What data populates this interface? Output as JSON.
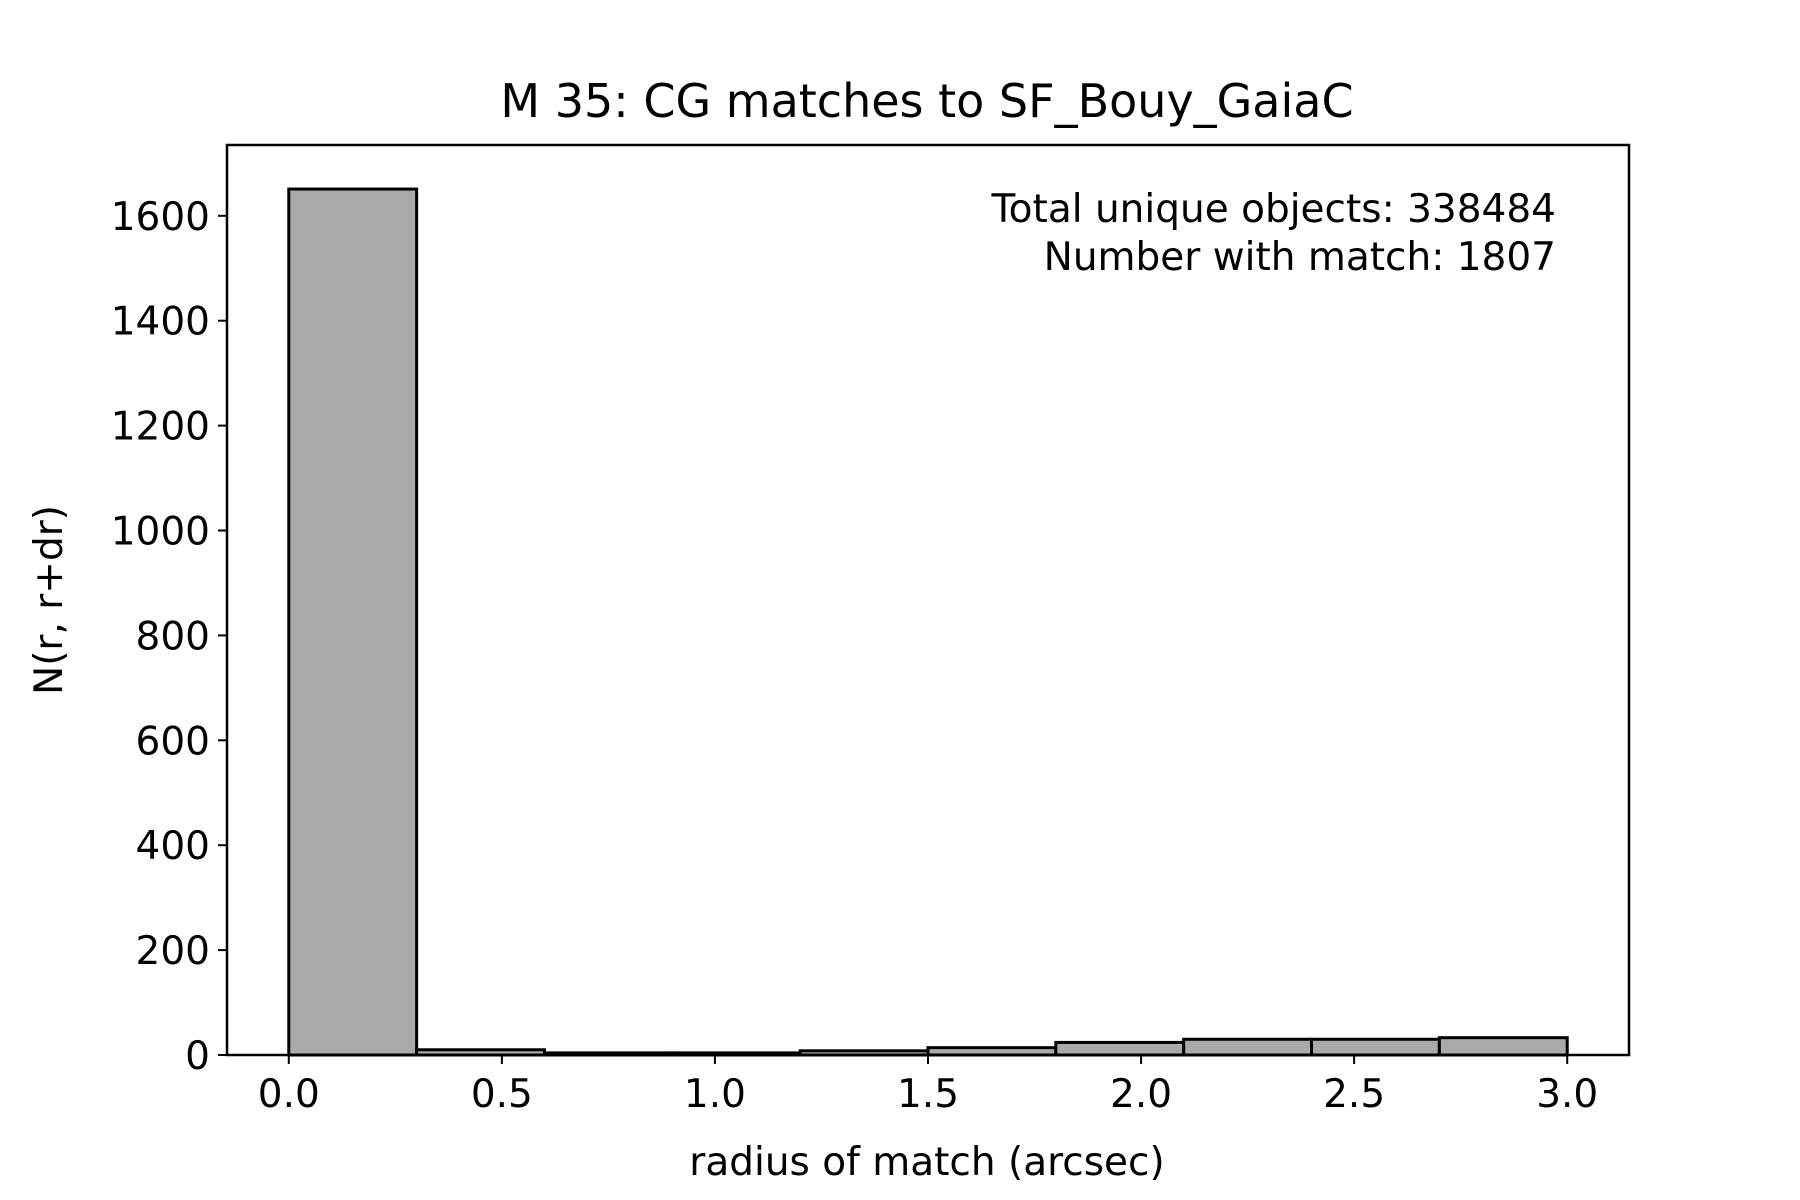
{
  "chart_data": {
    "type": "bar",
    "subtype": "histogram",
    "title": "M 35: CG matches to SF_Bouy_GaiaC",
    "xlabel": "radius of match (arcsec)",
    "ylabel": "N(r, r+dr)",
    "xlim": [
      -0.145,
      3.145
    ],
    "ylim": [
      0,
      1735
    ],
    "xticks": [
      0.0,
      0.5,
      1.0,
      1.5,
      2.0,
      2.5,
      3.0
    ],
    "xtick_labels": [
      "0.0",
      "0.5",
      "1.0",
      "1.5",
      "2.0",
      "2.5",
      "3.0"
    ],
    "yticks": [
      0,
      200,
      400,
      600,
      800,
      1000,
      1200,
      1400,
      1600
    ],
    "ytick_labels": [
      "0",
      "200",
      "400",
      "600",
      "800",
      "1000",
      "1200",
      "1400",
      "1600"
    ],
    "bin_edges": [
      0.0,
      0.3,
      0.6,
      0.9,
      1.2,
      1.5,
      1.8,
      2.1,
      2.4,
      2.7,
      3.0
    ],
    "values": [
      1651,
      10,
      4,
      4,
      8,
      14,
      24,
      30,
      30,
      33
    ],
    "bar_color": "#aaaaaa",
    "edge_color": "#000000",
    "grid": false,
    "annotations": [
      "Total unique objects: 338484",
      "Number with match: 1807"
    ],
    "annotation_position": "top-right"
  }
}
